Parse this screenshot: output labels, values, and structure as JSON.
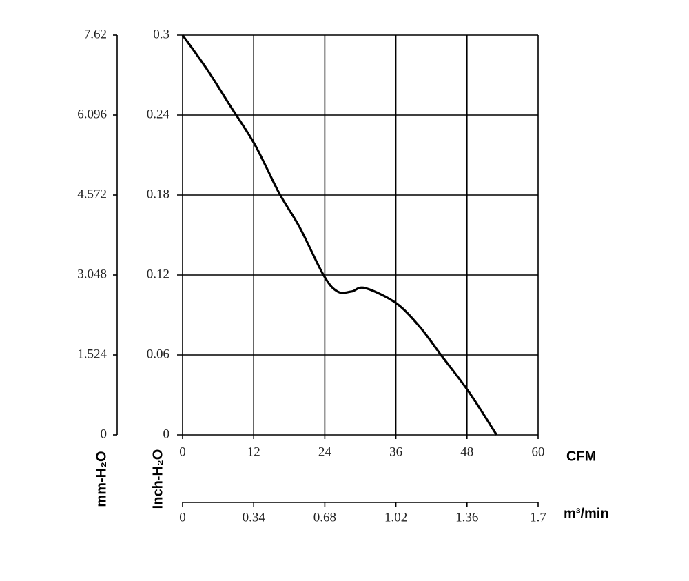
{
  "chart_data": {
    "type": "line",
    "x": [
      0,
      4.07,
      8.14,
      12.2,
      16.28,
      19.77,
      23.84,
      26.16,
      28.5,
      30.8,
      36.05,
      40.1,
      43.6,
      48.26,
      53.0
    ],
    "series": [
      {
        "color": "#000000",
        "values": [
          0.3,
          0.2747,
          0.2462,
          0.2178,
          0.1816,
          0.1557,
          0.1195,
          0.1076,
          0.1076,
          0.1102,
          0.0988,
          0.0807,
          0.06,
          0.0326,
          0
        ]
      }
    ],
    "xlim": [
      0,
      60
    ],
    "xticks": [
      0,
      12,
      24,
      36,
      48,
      60
    ],
    "xlabel": "CFM",
    "x2lim": [
      0,
      1.7
    ],
    "x2ticks": [
      0,
      0.34,
      0.68,
      1.02,
      1.36,
      1.7
    ],
    "x2label": "m³/min",
    "ylim": [
      0,
      0.3
    ],
    "yticks": [
      0,
      0.06,
      0.12,
      0.18,
      0.24,
      0.3
    ],
    "ylabel": "Inch-H₂O",
    "y2lim": [
      0,
      7.62
    ],
    "y2ticks": [
      0,
      1.524,
      3.048,
      4.572,
      6.096,
      7.62
    ],
    "y2label": "mm-H₂O",
    "grid": true
  }
}
